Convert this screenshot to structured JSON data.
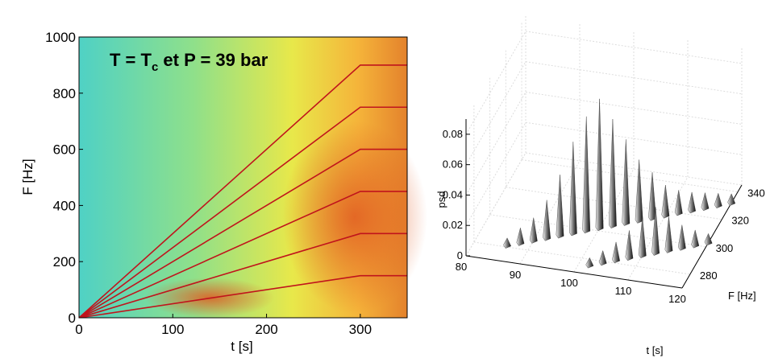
{
  "chart_data": [
    {
      "type": "spectrogram",
      "annotation": [
        "T = T",
        "c",
        " et P = 39 bar"
      ],
      "x_label": "t [s]",
      "y_label": "F [Hz]",
      "xlim": [
        0,
        350
      ],
      "xticks": [
        0,
        100,
        200,
        300
      ],
      "ylim": [
        0,
        1000
      ],
      "yticks": [
        0,
        200,
        400,
        600,
        800,
        1000
      ],
      "series": [
        {
          "color": "#c0141c",
          "x": [
            0,
            300,
            350
          ],
          "values": [
            0,
            150,
            150
          ]
        },
        {
          "color": "#c0141c",
          "x": [
            0,
            300,
            350
          ],
          "values": [
            0,
            300,
            300
          ]
        },
        {
          "color": "#c0141c",
          "x": [
            0,
            300,
            350
          ],
          "values": [
            0,
            450,
            450
          ]
        },
        {
          "color": "#c0141c",
          "x": [
            0,
            300,
            350
          ],
          "values": [
            0,
            600,
            600
          ]
        },
        {
          "color": "#c0141c",
          "x": [
            0,
            300,
            350
          ],
          "values": [
            0,
            750,
            750
          ]
        },
        {
          "color": "#c0141c",
          "x": [
            0,
            300,
            350
          ],
          "values": [
            0,
            900,
            900
          ]
        }
      ]
    },
    {
      "type": "spikes3d",
      "x_label": "t [s]",
      "y_label": "F [Hz]",
      "z_label": "psd",
      "xlim": [
        80,
        120
      ],
      "xticks": [
        80,
        90,
        100,
        110,
        120
      ],
      "ylim": [
        270,
        345
      ],
      "yticks": [
        280,
        300,
        320,
        340
      ],
      "zlim": [
        0,
        0.09
      ],
      "zticks": [
        0,
        0.02,
        0.04,
        0.06,
        0.08
      ],
      "series": [
        {
          "x": [
            86,
            88,
            90,
            92,
            94,
            96,
            98,
            100,
            102,
            104,
            106,
            108,
            110,
            112,
            114,
            116,
            118,
            120
          ],
          "y": [
            281,
            284,
            287,
            290,
            293,
            296,
            299,
            302,
            305,
            308,
            311,
            314,
            317,
            320,
            323,
            326,
            329,
            332
          ],
          "z": [
            0.005,
            0.01,
            0.015,
            0.025,
            0.04,
            0.06,
            0.075,
            0.085,
            0.07,
            0.055,
            0.04,
            0.03,
            0.02,
            0.015,
            0.012,
            0.01,
            0.008,
            0.006
          ]
        },
        {
          "x": [
            102,
            104,
            106,
            108,
            110,
            112,
            114,
            116,
            118,
            120
          ],
          "y": [
            276,
            279,
            282,
            285,
            288,
            291,
            294,
            297,
            300,
            303
          ],
          "z": [
            0.005,
            0.008,
            0.012,
            0.018,
            0.025,
            0.03,
            0.022,
            0.015,
            0.01,
            0.006
          ]
        }
      ]
    }
  ]
}
